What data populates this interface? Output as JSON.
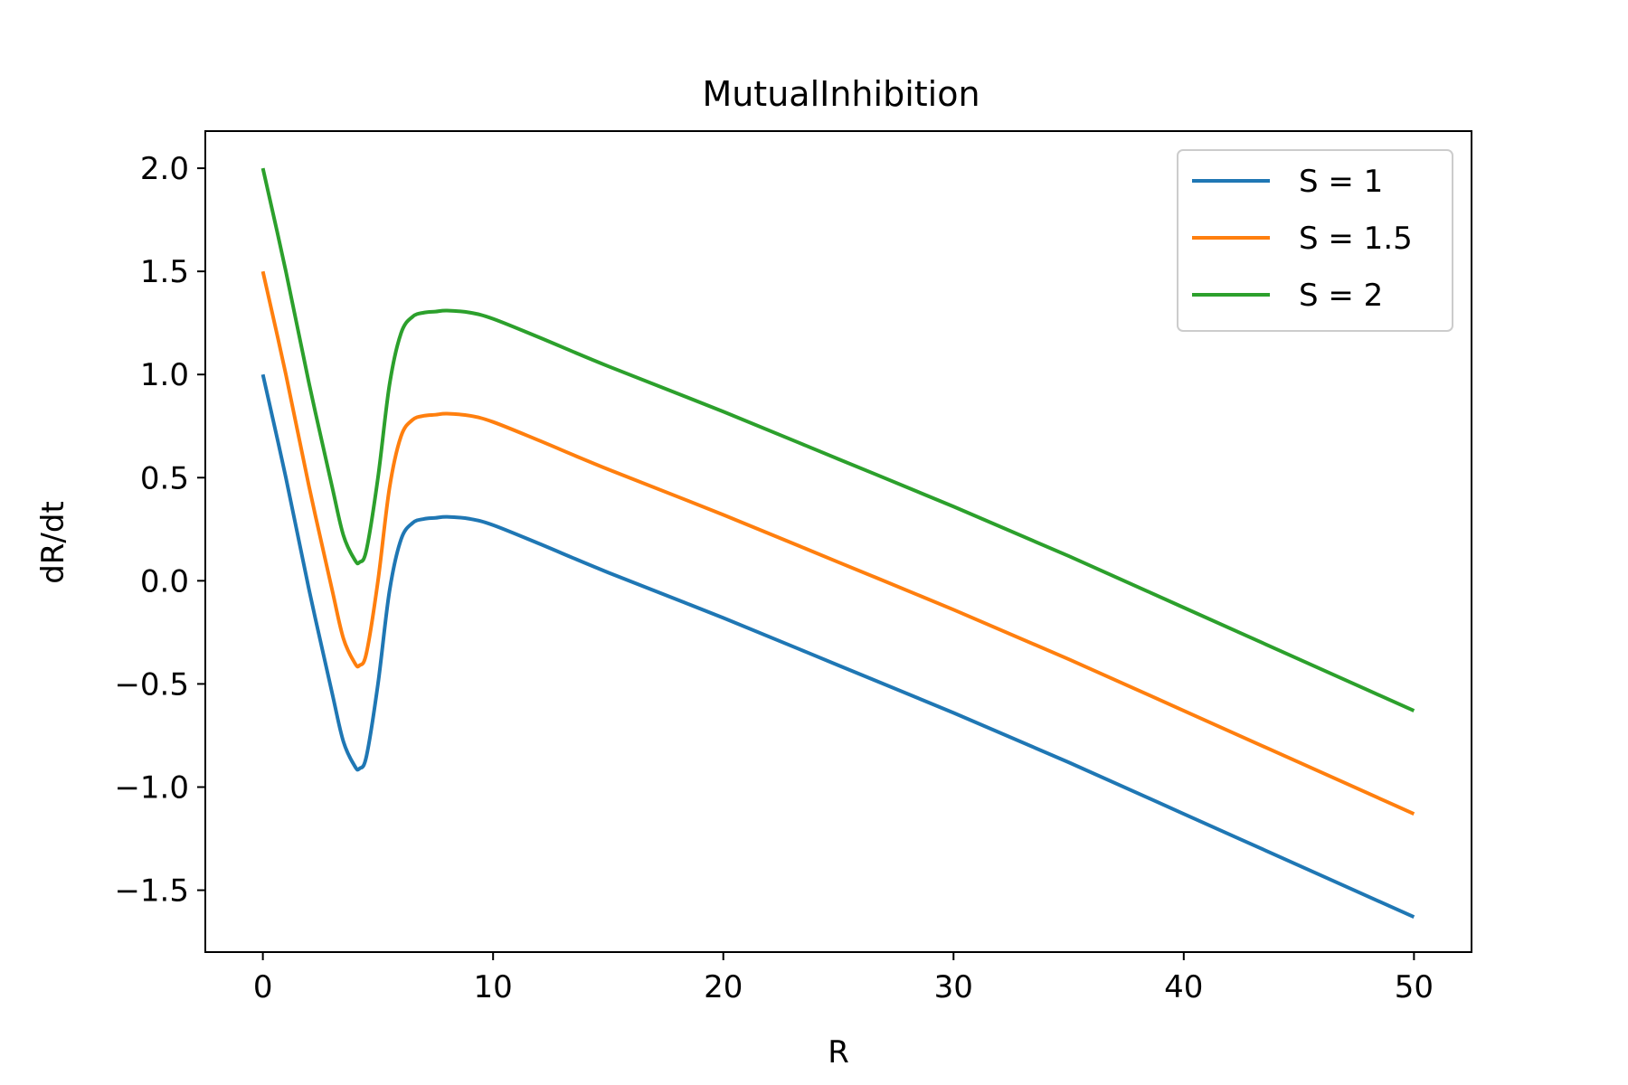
{
  "chart_data": {
    "type": "line",
    "title": "MutualInhibition",
    "xlabel": "R",
    "ylabel": "dR/dt",
    "xlim": [
      -2.5,
      52.5
    ],
    "ylim": [
      -1.8,
      2.18
    ],
    "xticks": [
      0,
      10,
      20,
      30,
      40,
      50
    ],
    "xtick_labels": [
      "0",
      "10",
      "20",
      "30",
      "40",
      "50"
    ],
    "yticks": [
      2.0,
      1.5,
      1.0,
      0.5,
      0.0,
      -0.5,
      -1.0,
      -1.5
    ],
    "ytick_labels": [
      "2.0",
      "1.5",
      "1.0",
      "0.5",
      "0.0",
      "−0.5",
      "−1.0",
      "−1.5"
    ],
    "grid": false,
    "legend_position": "top-right",
    "x": [
      0,
      1,
      2,
      3,
      3.5,
      4,
      4.2,
      4.5,
      5,
      5.5,
      6,
      6.5,
      7,
      7.5,
      8,
      9,
      10,
      12,
      15,
      20,
      25,
      30,
      35,
      40,
      45,
      50
    ],
    "series": [
      {
        "name": "S = 1",
        "color": "#1f77b4",
        "values": [
          1.0,
          0.5,
          -0.04,
          -0.54,
          -0.78,
          -0.9,
          -0.91,
          -0.85,
          -0.5,
          -0.05,
          0.2,
          0.28,
          0.3,
          0.305,
          0.31,
          0.3,
          0.27,
          0.18,
          0.04,
          -0.18,
          -0.41,
          -0.64,
          -0.88,
          -1.13,
          -1.38,
          -1.63
        ]
      },
      {
        "name": "S = 1.5",
        "color": "#ff7f0e",
        "values": [
          1.5,
          1.0,
          0.46,
          -0.04,
          -0.28,
          -0.4,
          -0.41,
          -0.35,
          0.0,
          0.45,
          0.7,
          0.78,
          0.8,
          0.805,
          0.81,
          0.8,
          0.77,
          0.68,
          0.54,
          0.32,
          0.09,
          -0.14,
          -0.38,
          -0.63,
          -0.88,
          -1.13
        ]
      },
      {
        "name": "S = 2",
        "color": "#2ca02c",
        "values": [
          2.0,
          1.5,
          0.96,
          0.46,
          0.22,
          0.1,
          0.09,
          0.15,
          0.5,
          0.95,
          1.2,
          1.28,
          1.3,
          1.305,
          1.31,
          1.3,
          1.27,
          1.18,
          1.04,
          0.82,
          0.59,
          0.36,
          0.12,
          -0.13,
          -0.38,
          -0.63
        ]
      }
    ]
  }
}
